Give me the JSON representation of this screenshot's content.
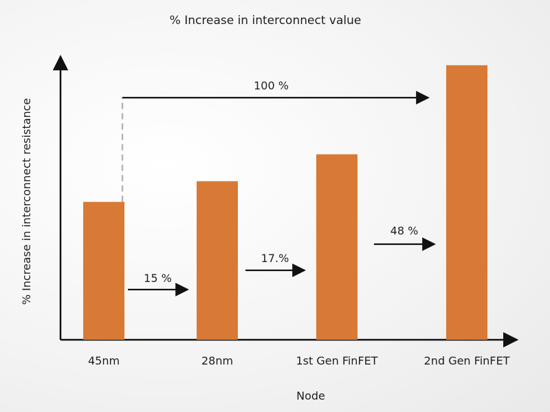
{
  "chart_data": {
    "type": "bar",
    "title": "% Increase in interconnect value",
    "xlabel": "Node",
    "ylabel": "% Increase in interconnect resistance",
    "categories": [
      "45nm",
      "28nm",
      "1st Gen FinFET",
      "2nd Gen FinFET"
    ],
    "values": [
      100,
      115,
      134.5,
      199.1
    ],
    "bar_color": "#d87a35",
    "ylim": [
      0,
      210
    ],
    "annotations": [
      {
        "text": "15 %",
        "from": "45nm",
        "to": "28nm"
      },
      {
        "text": "17.%",
        "from": "28nm",
        "to": "1st Gen FinFET"
      },
      {
        "text": "48 %",
        "from": "1st Gen FinFET",
        "to": "2nd Gen FinFET"
      },
      {
        "text": "100 %",
        "from": "45nm",
        "to": "2nd Gen FinFET"
      }
    ],
    "grid": false,
    "legend": "none"
  }
}
